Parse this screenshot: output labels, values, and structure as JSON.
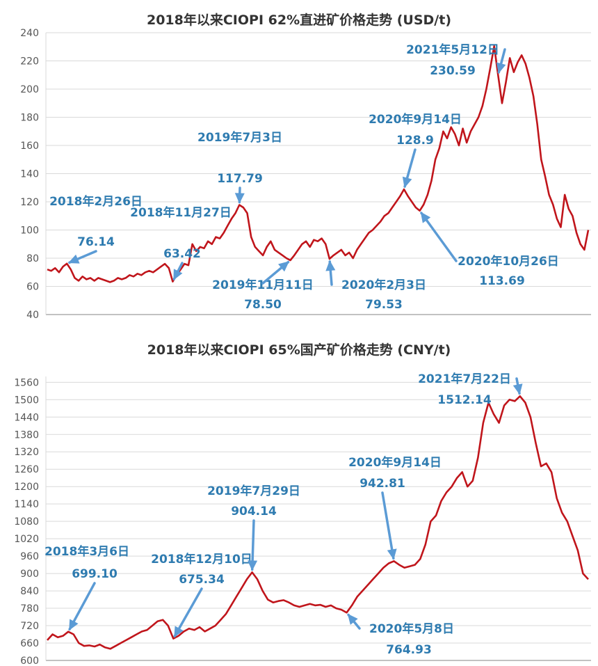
{
  "chart_data": [
    {
      "type": "line",
      "title": "2018年以来CIOPI 62%直进矿价格走势 (USD/t)",
      "xlabel": "",
      "ylabel": "",
      "ylim": [
        40,
        240
      ],
      "yticks": [
        "40",
        "60",
        "80",
        "100",
        "120",
        "140",
        "160",
        "180",
        "200",
        "220",
        "240"
      ],
      "grid": "horizontal",
      "line_color": "#c0151b",
      "annotation_color": "#5b9bd5",
      "series": [
        {
          "values": [
            72,
            71,
            73,
            70,
            74,
            76.14,
            72,
            66,
            64,
            67,
            65,
            66,
            64,
            66,
            65,
            64,
            63,
            64,
            66,
            65,
            66,
            68,
            67,
            69,
            68,
            70,
            71,
            70,
            72,
            74,
            76,
            73,
            63.42,
            68,
            72,
            76,
            75,
            90,
            85,
            88,
            87,
            92,
            90,
            95,
            94,
            98,
            103,
            108,
            112,
            117.79,
            116,
            112,
            95,
            88,
            85,
            82,
            88,
            92,
            86,
            84,
            82,
            80,
            78.5,
            82,
            86,
            90,
            92,
            88,
            93,
            92,
            94,
            90,
            79.53,
            82,
            84,
            86,
            82,
            84,
            80,
            86,
            90,
            94,
            98,
            100,
            103,
            106,
            110,
            112,
            116,
            120,
            124,
            128.9,
            124,
            120,
            116,
            113.69,
            118,
            125,
            135,
            150,
            158,
            170,
            165,
            173,
            168,
            160,
            172,
            162,
            170,
            175,
            180,
            188,
            200,
            215,
            230.59,
            210,
            190,
            205,
            222,
            212,
            219,
            224,
            218,
            208,
            195,
            175,
            150,
            138,
            125,
            118,
            108,
            102,
            125,
            115,
            110,
            98,
            90,
            86,
            100
          ]
        }
      ],
      "annotations": [
        {
          "date": "2018年2月26日",
          "value": "76.14",
          "index": 5
        },
        {
          "date": "2018年11月27日",
          "value": "63.42",
          "index": 32
        },
        {
          "date": "2019年7月3日",
          "value": "117.79",
          "index": 49
        },
        {
          "date": "2019年11月11日",
          "value": "78.50",
          "index": 62
        },
        {
          "date": "2020年2月3日",
          "value": "79.53",
          "index": 72
        },
        {
          "date": "2020年9月14日",
          "value": "128.9",
          "index": 91
        },
        {
          "date": "2020年10月26日",
          "value": "113.69",
          "index": 95
        },
        {
          "date": "2021年5月12日",
          "value": "230.59",
          "index": 115
        }
      ]
    },
    {
      "type": "line",
      "title": "2018年以来CIOPI 65%国产矿价格走势 (CNY/t)",
      "xlabel": "",
      "ylabel": "",
      "ylim": [
        600,
        1580
      ],
      "yticks": [
        "600",
        "660",
        "720",
        "780",
        "840",
        "900",
        "960",
        "1020",
        "1080",
        "1140",
        "1200",
        "1260",
        "1320",
        "1380",
        "1440",
        "1500",
        "1560"
      ],
      "grid": "horizontal",
      "line_color": "#c0151b",
      "annotation_color": "#5b9bd5",
      "series": [
        {
          "values": [
            670,
            690,
            680,
            685,
            699.1,
            690,
            660,
            650,
            652,
            648,
            655,
            645,
            640,
            650,
            660,
            670,
            680,
            690,
            700,
            705,
            720,
            735,
            740,
            720,
            675.34,
            685,
            700,
            710,
            705,
            715,
            700,
            710,
            720,
            740,
            760,
            790,
            820,
            850,
            880,
            904.14,
            880,
            840,
            810,
            800,
            805,
            808,
            800,
            790,
            785,
            790,
            795,
            790,
            792,
            785,
            790,
            780,
            775,
            764.93,
            790,
            820,
            840,
            860,
            880,
            900,
            920,
            935,
            942.81,
            930,
            920,
            925,
            930,
            950,
            1000,
            1080,
            1100,
            1150,
            1180,
            1200,
            1230,
            1250,
            1200,
            1220,
            1300,
            1420,
            1490,
            1450,
            1420,
            1480,
            1500,
            1495,
            1512.14,
            1490,
            1440,
            1350,
            1270,
            1280,
            1250,
            1160,
            1110,
            1080,
            1030,
            980,
            900,
            880
          ]
        }
      ],
      "annotations": [
        {
          "date": "2018年3月6日",
          "value": "699.10",
          "index": 4
        },
        {
          "date": "2018年12月10日",
          "value": "675.34",
          "index": 24
        },
        {
          "date": "2019年7月29日",
          "value": "904.14",
          "index": 39
        },
        {
          "date": "2020年5月8日",
          "value": "764.93",
          "index": 57
        },
        {
          "date": "2020年9月14日",
          "value": "942.81",
          "index": 66
        },
        {
          "date": "2021年7月22日",
          "value": "1512.14",
          "index": 90
        }
      ]
    }
  ]
}
